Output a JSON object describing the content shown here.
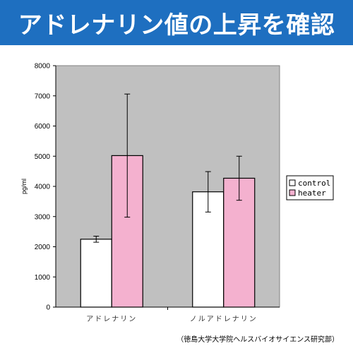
{
  "header": {
    "title": "アドレナリン値の上昇を確認"
  },
  "source_note": "（徳島大学大学院ヘルスバイオサイエンス研究部）",
  "chart_data": {
    "type": "bar",
    "categories": [
      "アドレナリン",
      "ノルアドレナリン"
    ],
    "series": [
      {
        "name": "control",
        "values": [
          2250,
          3820
        ],
        "error": [
          100,
          670
        ],
        "color": "#ffffff"
      },
      {
        "name": "heater",
        "values": [
          5020,
          4270
        ],
        "error": [
          2040,
          730
        ],
        "color": "#f4b1cf"
      }
    ],
    "ylabel": "pg/ml",
    "ylim": [
      0,
      8000
    ],
    "yticks": [
      0,
      1000,
      2000,
      3000,
      4000,
      5000,
      6000,
      7000,
      8000
    ],
    "legend_position": "right",
    "plot_background": "#c0c0c0"
  }
}
